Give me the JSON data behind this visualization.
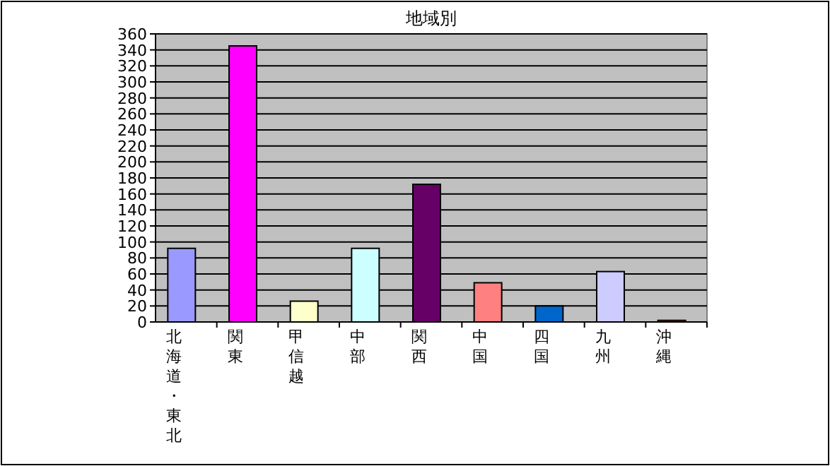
{
  "chart_data": {
    "type": "bar",
    "title": "地域別",
    "categories": [
      "北海道・東北",
      "関東",
      "甲信越",
      "中部",
      "関西",
      "中国",
      "四国",
      "九州",
      "沖縄"
    ],
    "values": [
      92,
      345,
      26,
      92,
      172,
      49,
      20,
      63,
      2
    ],
    "colors": [
      "#9999ff",
      "#ff00ff",
      "#ffffcc",
      "#ccffff",
      "#660066",
      "#ff8080",
      "#0066cc",
      "#ccccff",
      "#ff6600"
    ],
    "ylim": [
      0,
      360
    ],
    "yticks": [
      0,
      20,
      40,
      60,
      80,
      100,
      120,
      140,
      160,
      180,
      200,
      220,
      240,
      260,
      280,
      300,
      320,
      340,
      360
    ],
    "grid": "y"
  }
}
